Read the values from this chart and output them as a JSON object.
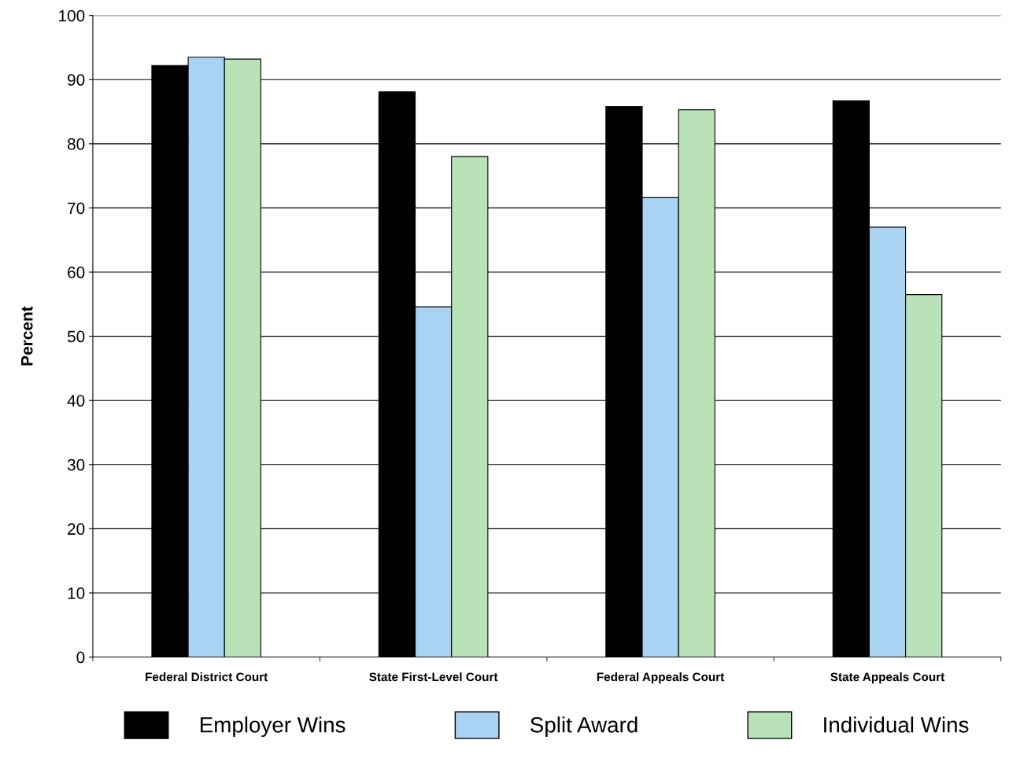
{
  "chart_data": {
    "type": "bar",
    "ylabel": "Percent",
    "categories": [
      "Federal District Court",
      "State First-Level Court",
      "Federal Appeals Court",
      "State Appeals Court"
    ],
    "series": [
      {
        "name": "Employer Wins",
        "color": "#000000",
        "values": [
          92.2,
          88.1,
          85.8,
          86.7
        ]
      },
      {
        "name": "Split Award",
        "color": "#a9d3f2",
        "values": [
          93.5,
          54.6,
          71.6,
          67.0
        ]
      },
      {
        "name": "Individual Wins",
        "color": "#b9e2b9",
        "values": [
          93.2,
          78.0,
          85.3,
          56.5
        ]
      }
    ],
    "ylim": [
      0,
      100
    ],
    "yticks": [
      0,
      10,
      20,
      30,
      40,
      50,
      60,
      70,
      80,
      90,
      100
    ],
    "grid": "y",
    "legend": "bottom"
  }
}
